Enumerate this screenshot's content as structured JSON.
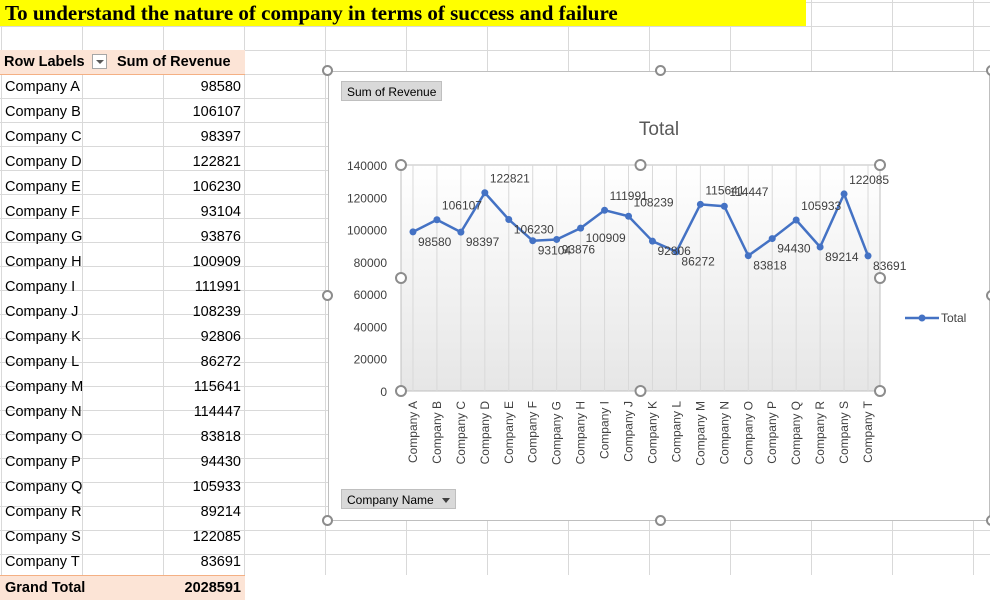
{
  "sheet_title": "To understand the nature of company in terms of success and failure",
  "pivot": {
    "header_row_labels": "Row Labels",
    "header_sum": "Sum of Revenue",
    "filter_icon": "chevron-down-icon",
    "rows": [
      {
        "label": "Company A",
        "value": "98580"
      },
      {
        "label": "Company B",
        "value": "106107"
      },
      {
        "label": "Company C",
        "value": "98397"
      },
      {
        "label": "Company D",
        "value": "122821"
      },
      {
        "label": "Company E",
        "value": "106230"
      },
      {
        "label": "Company F",
        "value": "93104"
      },
      {
        "label": "Company G",
        "value": "93876"
      },
      {
        "label": "Company H",
        "value": "100909"
      },
      {
        "label": "Company I",
        "value": "111991"
      },
      {
        "label": "Company J",
        "value": "108239"
      },
      {
        "label": "Company K",
        "value": "92806"
      },
      {
        "label": "Company L",
        "value": "86272"
      },
      {
        "label": "Company M",
        "value": "115641"
      },
      {
        "label": "Company N",
        "value": "114447"
      },
      {
        "label": "Company O",
        "value": "83818"
      },
      {
        "label": "Company P",
        "value": "94430"
      },
      {
        "label": "Company Q",
        "value": "105933"
      },
      {
        "label": "Company R",
        "value": "89214"
      },
      {
        "label": "Company S",
        "value": "122085"
      },
      {
        "label": "Company T",
        "value": "83691"
      }
    ],
    "grand_total_label": "Grand Total",
    "grand_total_value": "2028591"
  },
  "chart_buttons": {
    "value_field": "Sum of Revenue",
    "axis_field": "Company Name"
  },
  "chart_data": {
    "type": "line",
    "title": "Total",
    "categories": [
      "Company A",
      "Company B",
      "Company C",
      "Company D",
      "Company E",
      "Company F",
      "Company G",
      "Company H",
      "Company I",
      "Company J",
      "Company K",
      "Company L",
      "Company M",
      "Company N",
      "Company O",
      "Company P",
      "Company Q",
      "Company R",
      "Company S",
      "Company T"
    ],
    "series": [
      {
        "name": "Total",
        "color": "#4472c4",
        "values": [
          98580,
          106107,
          98397,
          122821,
          106230,
          93104,
          93876,
          100909,
          111991,
          108239,
          92806,
          86272,
          115641,
          114447,
          83818,
          94430,
          105933,
          89214,
          122085,
          83691
        ]
      }
    ],
    "ylim": [
      0,
      140000
    ],
    "yticks": [
      0,
      20000,
      40000,
      60000,
      80000,
      100000,
      120000,
      140000
    ],
    "grid": true,
    "legend": "right",
    "data_labels": true
  }
}
